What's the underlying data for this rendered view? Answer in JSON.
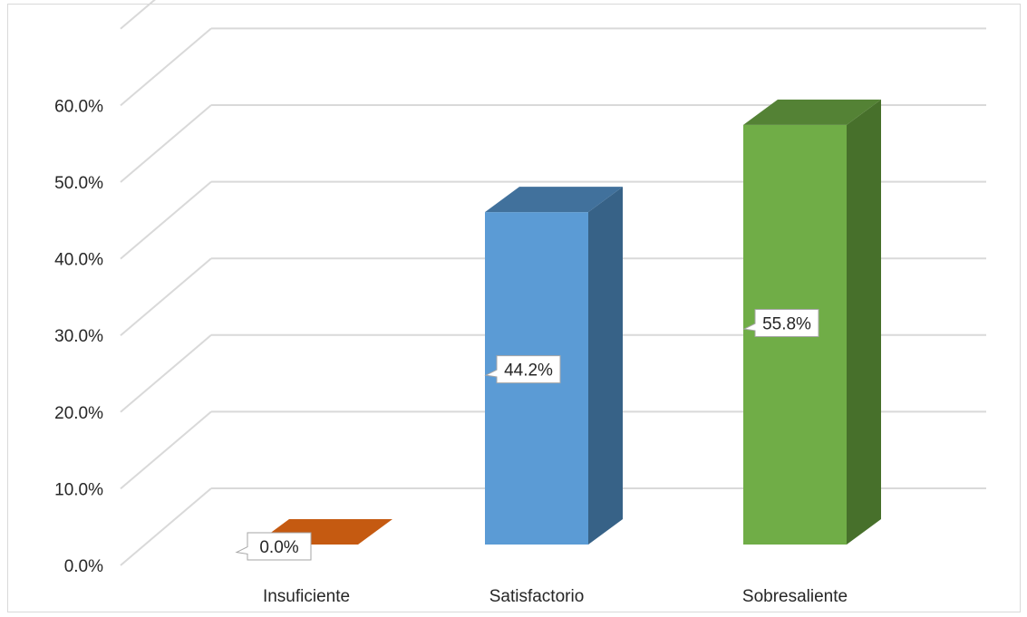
{
  "chart_data": {
    "type": "bar",
    "style": "3d-column",
    "categories": [
      "Insuficiente",
      "Satisfactorio",
      "Sobresaliente"
    ],
    "values": [
      0.0,
      44.2,
      55.8
    ],
    "data_labels": [
      "0.0%",
      "44.2%",
      "55.8%"
    ],
    "ylim": [
      0,
      60
    ],
    "yticks": [
      "0.0%",
      "10.0%",
      "20.0%",
      "30.0%",
      "40.0%",
      "50.0%",
      "60.0%"
    ],
    "grid": true,
    "legend": "none",
    "colors": [
      {
        "front": "#c55a11",
        "top": "#c55a11",
        "side": "#843c0c"
      },
      {
        "front": "#5b9bd5",
        "top": "#41719c",
        "side": "#376287"
      },
      {
        "front": "#70ad47",
        "top": "#548235",
        "side": "#47702b"
      }
    ]
  }
}
